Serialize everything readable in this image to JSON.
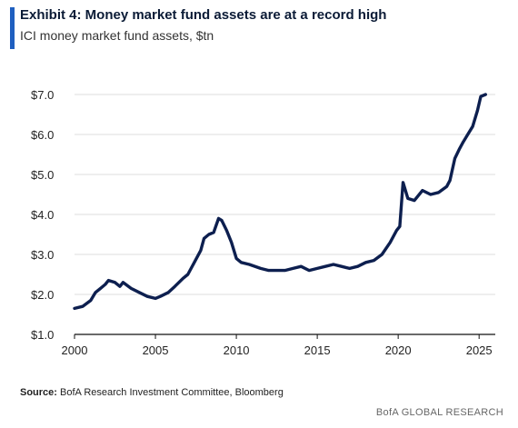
{
  "header": {
    "title": "Exhibit 4: Money market fund assets are at a record high",
    "subtitle": "ICI money market fund assets, $tn"
  },
  "footer": {
    "source_label": "Source:",
    "source_text": "BofA Research Investment Committee, Bloomberg",
    "brand": "BofA GLOBAL RESEARCH"
  },
  "colors": {
    "line": "#0d1f4f",
    "accent": "#1f5fc0",
    "grid": "#dddddd"
  },
  "chart_data": {
    "type": "line",
    "title": "Exhibit 4: Money market fund assets are at a record high",
    "subtitle": "ICI money market fund assets, $tn",
    "xlabel": "",
    "ylabel": "",
    "xlim": [
      2000,
      2026
    ],
    "ylim": [
      1.0,
      7.0
    ],
    "x_ticks": [
      2000,
      2005,
      2010,
      2015,
      2020,
      2025
    ],
    "y_ticks": [
      1.0,
      2.0,
      3.0,
      4.0,
      5.0,
      6.0,
      7.0
    ],
    "y_tick_labels": [
      "$1.0",
      "$2.0",
      "$3.0",
      "$4.0",
      "$5.0",
      "$6.0",
      "$7.0"
    ],
    "grid": "horizontal",
    "series": [
      {
        "x": [
          2000.0,
          2000.5,
          2001.0,
          2001.3,
          2001.6,
          2001.9,
          2002.1,
          2002.5,
          2002.8,
          2003.0,
          2003.5,
          2004.0,
          2004.5,
          2005.0,
          2005.3,
          2005.8,
          2006.2,
          2006.7,
          2007.0,
          2007.4,
          2007.8,
          2008.0,
          2008.3,
          2008.6,
          2008.9,
          2009.1,
          2009.4,
          2009.7,
          2010.0,
          2010.3,
          2010.8,
          2011.5,
          2012.0,
          2012.5,
          2013.0,
          2013.5,
          2014.0,
          2014.5,
          2015.0,
          2015.5,
          2016.0,
          2016.5,
          2017.0,
          2017.5,
          2018.0,
          2018.5,
          2019.0,
          2019.5,
          2019.9,
          2020.1,
          2020.3,
          2020.6,
          2021.0,
          2021.5,
          2022.0,
          2022.5,
          2023.0,
          2023.2,
          2023.5,
          2023.8,
          2024.0,
          2024.3,
          2024.6,
          2024.9,
          2025.1,
          2025.4
        ],
        "values": [
          1.65,
          1.7,
          1.85,
          2.05,
          2.15,
          2.25,
          2.35,
          2.3,
          2.2,
          2.3,
          2.15,
          2.05,
          1.95,
          1.9,
          1.95,
          2.05,
          2.2,
          2.4,
          2.5,
          2.8,
          3.1,
          3.4,
          3.5,
          3.55,
          3.9,
          3.85,
          3.6,
          3.3,
          2.9,
          2.8,
          2.75,
          2.65,
          2.6,
          2.6,
          2.6,
          2.65,
          2.7,
          2.6,
          2.65,
          2.7,
          2.75,
          2.7,
          2.65,
          2.7,
          2.8,
          2.85,
          3.0,
          3.3,
          3.6,
          3.7,
          4.8,
          4.4,
          4.35,
          4.6,
          4.5,
          4.55,
          4.7,
          4.85,
          5.4,
          5.65,
          5.8,
          6.0,
          6.2,
          6.6,
          6.95,
          7.0
        ]
      }
    ]
  }
}
